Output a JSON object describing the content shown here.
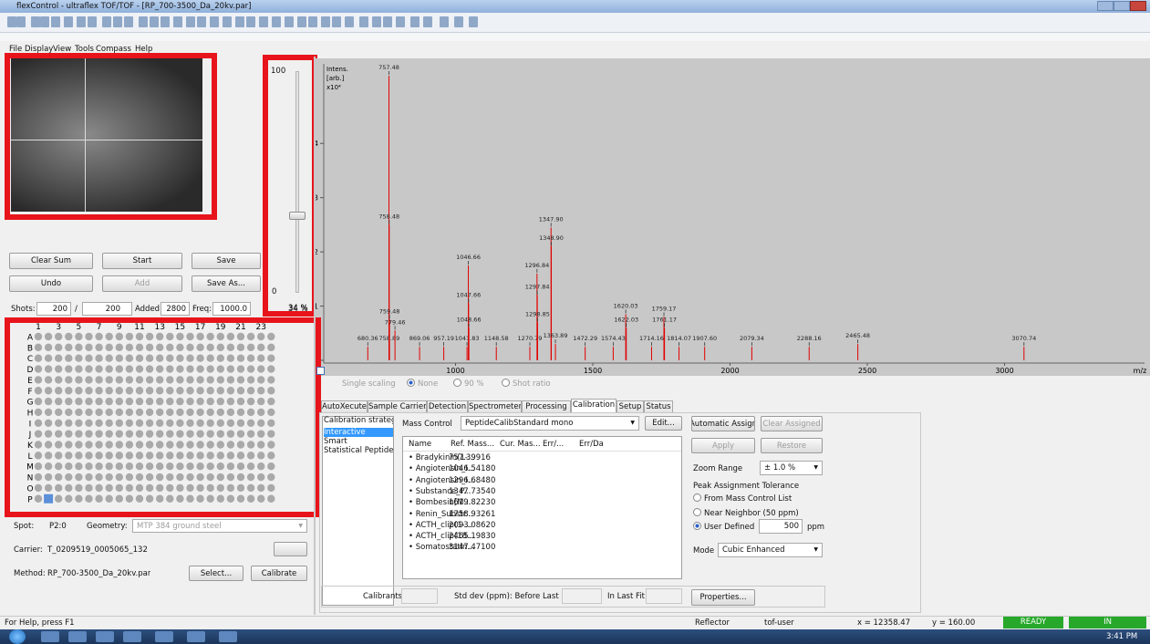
{
  "window": {
    "title": "flexControl - ultraflex TOF/TOF - [RP_700-3500_Da_20kv.par]"
  },
  "menu": [
    "File",
    "Display",
    "View",
    "Tools",
    "Compass",
    "Help"
  ],
  "slider": {
    "max": "100",
    "min": "0",
    "value_label": "34 %"
  },
  "buttons": {
    "clear_sum": "Clear Sum",
    "start": "Start",
    "save": "Save",
    "undo": "Undo",
    "add": "Add",
    "save_as": "Save As..."
  },
  "shots": {
    "label": "Shots:",
    "value": "200",
    "separator": "/",
    "total": "200",
    "added_label": "Added:",
    "added": "2800",
    "freq_label": "Freq:",
    "freq": "1000.0",
    "percent": "34 %"
  },
  "plate": {
    "rows": [
      "A",
      "B",
      "C",
      "D",
      "E",
      "F",
      "G",
      "H",
      "I",
      "J",
      "K",
      "L",
      "M",
      "N",
      "O",
      "P"
    ],
    "column_labels": [
      "1",
      "3",
      "5",
      "7",
      "9",
      "11",
      "13",
      "15",
      "17",
      "19",
      "21",
      "23"
    ],
    "columns": 24,
    "selected": {
      "row": 15,
      "column": 1
    }
  },
  "spot": {
    "label": "Spot:",
    "value": "P2:0",
    "geometry_label": "Geometry:",
    "geometry": "MTP 384 ground steel"
  },
  "carrier": {
    "label": "Carrier:",
    "value": "T_0209519_0005065_132"
  },
  "method": {
    "label": "Method:",
    "value": "RP_700-3500_Da_20kv.par",
    "select": "Select...",
    "calibrate": "Calibrate"
  },
  "spectrum": {
    "y_label": [
      "Intens.",
      "[arb.]"
    ],
    "y_exponent": "x10⁴",
    "x_label": "m/z",
    "xlim": [
      520,
      3460
    ],
    "ylim": [
      0,
      5.35
    ],
    "xticks": [
      1000,
      1500,
      2000,
      2500,
      3000
    ],
    "yticks": [
      0,
      1,
      2,
      3,
      4
    ],
    "peaks": {
      "x": [
        680.36,
        757.48,
        758.48,
        758.89,
        759.48,
        779.46,
        869.06,
        957.19,
        1041.83,
        1046.66,
        1047.66,
        1048.66,
        1148.58,
        1270.79,
        1296.84,
        1297.84,
        1298.85,
        1347.9,
        1348.9,
        1363.89,
        1472.29,
        1574.43,
        1620.03,
        1622.03,
        1714.16,
        1759.17,
        1761.17,
        1814.07,
        1907.6,
        2079.34,
        2288.16,
        2465.48,
        3070.74
      ],
      "value_labels": [
        "680.36",
        "757.48",
        "758.48",
        "758.89",
        "759.48",
        "779.46",
        "869.06",
        "957.19",
        "1041.83",
        "1046.66",
        "1047.66",
        "1048.66",
        "1148.58",
        "1270.79",
        "1296.84",
        "1297.84",
        "1298.85",
        "1347.90",
        "1348.90",
        "1363.89",
        "1472.29",
        "1574.43",
        "1620.03",
        "1622.03",
        "1714.16",
        "1759.17",
        "1761.17",
        "1814.07",
        "1907.60",
        "2079.34",
        "2288.16",
        "2465.48",
        "3070.74"
      ],
      "intensity": [
        0.25,
        5.25,
        2.5,
        0.25,
        0.75,
        0.55,
        0.25,
        0.25,
        0.25,
        1.75,
        1.05,
        0.6,
        0.25,
        0.25,
        1.6,
        1.2,
        0.7,
        2.45,
        2.1,
        0.3,
        0.25,
        0.25,
        0.85,
        0.6,
        0.25,
        0.8,
        0.6,
        0.25,
        0.25,
        0.25,
        0.25,
        0.3,
        0.25
      ]
    },
    "color": "#e00000"
  },
  "scaling": {
    "single": "Single scaling",
    "none": "None",
    "p90": "90 %",
    "shot_ratio": "Shot ratio"
  },
  "tabs": [
    "AutoXecute",
    "Sample Carrier",
    "Detection",
    "Spectrometer",
    "Processing",
    "Calibration",
    "Setup",
    "Status"
  ],
  "active_tab": 5,
  "calibration": {
    "strategy_header": "Calibration strategy",
    "strategies": [
      "Interactive",
      "Smart",
      "Statistical Peptide"
    ],
    "mass_control_label": "Mass Control",
    "mass_control": "PeptideCalibStandard mono",
    "edit": "Edit...",
    "columns": [
      "Name",
      "Ref. Mass...",
      "Cur. Mas...",
      "Err/...",
      "Err/Da"
    ],
    "rows": [
      [
        "Bradykinin(1-...",
        "757.39916"
      ],
      [
        "Angiotensin_I...",
        "1046.54180"
      ],
      [
        "Angiotensin_I...",
        "1296.68480"
      ],
      [
        "Substance_P...",
        "1347.73540"
      ],
      [
        "Bombesin[M...",
        "1619.82230"
      ],
      [
        "Renin_Substr...",
        "1758.93261"
      ],
      [
        "ACTH_clip(1-...",
        "2093.08620"
      ],
      [
        "ACTH_clip(18...",
        "2465.19830"
      ],
      [
        "Somatostatin...",
        "3147.47100"
      ]
    ],
    "automatic_assign": "Automatic Assign",
    "clear_assigned": "Clear Assigned",
    "apply": "Apply",
    "restore": "Restore",
    "zoom_range_label": "Zoom Range",
    "zoom_range": "± 1.0 %",
    "tolerance_header": "Peak Assignment Tolerance",
    "from_list": "From Mass Control List",
    "near_neighbor": "Near Neighbor (50 ppm)",
    "user_defined": "User Defined",
    "ppm_value": "500",
    "ppm": "ppm",
    "mode_label": "Mode",
    "mode": "Cubic Enhanced",
    "calibrants": "Calibrants",
    "std_dev": "Std dev (ppm): Before Last",
    "in_last_fit": "In Last Fit",
    "properties": "Properties..."
  },
  "status": {
    "help": "For Help, press F1",
    "mode": "Reflector",
    "user": "tof-user",
    "x": "x = 12358.47",
    "y": "y = 160.00",
    "ready": "READY",
    "in": "IN"
  },
  "taskbar": {
    "time": "3:41 PM"
  }
}
